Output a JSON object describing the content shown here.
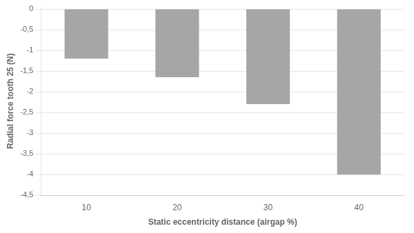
{
  "chart_data": {
    "type": "bar",
    "categories": [
      "10",
      "20",
      "30",
      "40"
    ],
    "values": [
      -1.2,
      -1.65,
      -2.3,
      -4.0
    ],
    "color": "#a6a6a6",
    "xlabel": "Static eccentricity distance (airgap %)",
    "ylabel": "Radial force tooth 25 (N)",
    "ylim": [
      -4.5,
      0.05
    ],
    "yticks": [
      0,
      {
        "value": -0.5,
        "label": "-0,5"
      },
      -1,
      {
        "value": -1.5,
        "label": "-1,5"
      },
      -2,
      {
        "value": -2.5,
        "label": "-2,5"
      },
      -3,
      {
        "value": -3.5,
        "label": "-3,5"
      },
      -4,
      {
        "value": -4.5,
        "label": "-4,5"
      }
    ],
    "grid": true
  }
}
